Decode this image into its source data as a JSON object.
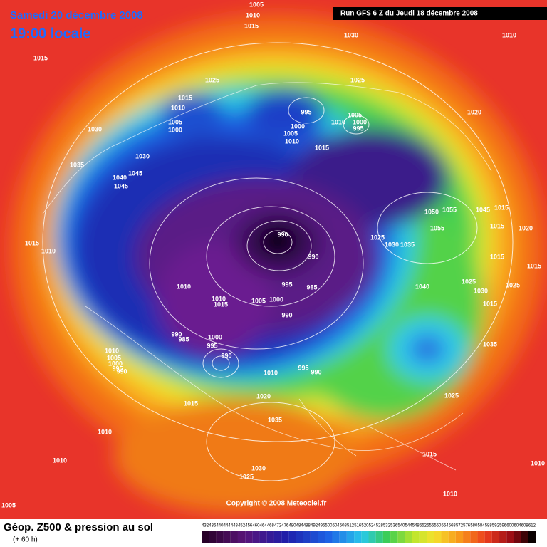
{
  "header": {
    "date": "Samedi 20 décembre 2008",
    "time": "19:00 locale",
    "run": "Run GFS 6 Z du Jeudi 18 décembre 2008"
  },
  "map": {
    "copyright": "Copyright © 2008 Meteociel.fr",
    "pressure_labels": [
      1005,
      1010,
      1015,
      1030,
      1010,
      1015,
      1025,
      1025,
      1015,
      1010,
      995,
      1005,
      1000,
      1010,
      995,
      1020,
      1005,
      1000,
      1000,
      1005,
      1010,
      1030,
      1015,
      1030,
      1035,
      1045,
      1040,
      1045,
      1050,
      1055,
      1045,
      1015,
      1015,
      1020,
      990,
      1015,
      1010,
      1025,
      1030,
      1035,
      1055,
      990,
      1015,
      1015,
      995,
      985,
      1040,
      1025,
      1010,
      1030,
      1025,
      1010,
      1015,
      1005,
      1000,
      1015,
      990,
      990,
      985,
      1000,
      995,
      1035,
      990,
      1010,
      1005,
      1000,
      995,
      990,
      995,
      990,
      1010,
      1020,
      1015,
      1025,
      1035,
      1010,
      1015,
      1010,
      1030,
      1025,
      1010,
      1005,
      1010
    ]
  },
  "footer": {
    "title": "Géop. Z500 & pression au sol",
    "subtitle": "(+ 60 h)",
    "scale": [
      432,
      436,
      440,
      444,
      448,
      452,
      456,
      460,
      464,
      468,
      472,
      476,
      480,
      484,
      488,
      492,
      496,
      500,
      504,
      508,
      512,
      516,
      520,
      524,
      528,
      532,
      536,
      540,
      544,
      548,
      552,
      556,
      560,
      564,
      568,
      572,
      576,
      580,
      584,
      588,
      592,
      596,
      600,
      604,
      608,
      612
    ]
  }
}
